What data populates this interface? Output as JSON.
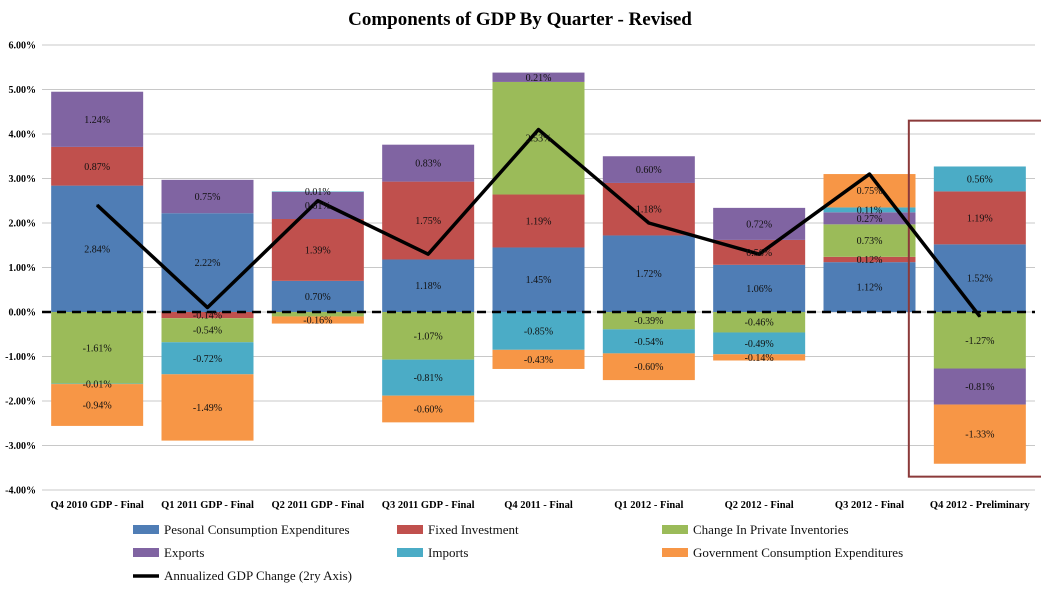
{
  "chart_data": {
    "type": "bar",
    "stacked": true,
    "title": "Components of GDP By Quarter - Revised",
    "categories": [
      "Q4 2010 GDP - Final",
      "Q1 2011 GDP - Final",
      "Q2 2011 GDP - Final",
      "Q3 2011 GDP - Final",
      "Q4 2011 - Final",
      "Q1 2012 - Final",
      "Q2 2012 - Final",
      "Q3 2012 - Final",
      "Q4 2012 - Preliminary"
    ],
    "ylim": [
      -4,
      6
    ],
    "yticks": [
      -4,
      -3,
      -2,
      -1,
      0,
      1,
      2,
      3,
      4,
      5,
      6
    ],
    "ytick_labels": [
      "-4.00%",
      "-3.00%",
      "-2.00%",
      "-1.00%",
      "0.00%",
      "1.00%",
      "2.00%",
      "3.00%",
      "4.00%",
      "5.00%",
      "6.00%"
    ],
    "grid": true,
    "legend_position": "bottom",
    "highlighted_category": "Q4 2012 - Preliminary",
    "highlight_color": "#8b3a3a",
    "series": [
      {
        "name": "Pesonal Consumption Expenditures",
        "color": "#4f7db5",
        "values": [
          2.84,
          2.22,
          0.7,
          1.18,
          1.45,
          1.72,
          1.06,
          1.12,
          1.52
        ],
        "labels": [
          "2.84%",
          "2.22%",
          "0.70%",
          "1.18%",
          "1.45%",
          "1.72%",
          "1.06%",
          "1.12%",
          "1.52%"
        ]
      },
      {
        "name": "Fixed Investment",
        "color": "#c0504d",
        "values": [
          0.87,
          -0.14,
          1.39,
          1.75,
          1.19,
          1.18,
          0.56,
          0.12,
          1.19
        ],
        "labels": [
          "0.87%",
          "-0.14%",
          "1.39%",
          "1.75%",
          "1.19%",
          "1.18%",
          "0.56%",
          "0.12%",
          "1.19%"
        ]
      },
      {
        "name": "Change In Private Inventories",
        "color": "#9bbb59",
        "values": [
          -1.61,
          -0.54,
          -0.1,
          -1.07,
          2.53,
          -0.39,
          -0.46,
          0.73,
          -1.27
        ],
        "labels": [
          "-1.61%",
          "-0.54%",
          "",
          "-1.07%",
          "2.53%",
          "-0.39%",
          "-0.46%",
          "0.73%",
          "-1.27%"
        ]
      },
      {
        "name": "Exports",
        "color": "#8064a2",
        "values": [
          1.24,
          0.75,
          0.61,
          0.83,
          0.21,
          0.6,
          0.72,
          0.27,
          -0.81
        ],
        "labels": [
          "1.24%",
          "0.75%",
          "0.61%",
          "0.83%",
          "0.21%",
          "0.60%",
          "0.72%",
          "0.27%",
          "-0.81%"
        ]
      },
      {
        "name": "Imports",
        "color": "#4bacc6",
        "values": [
          -0.01,
          -0.72,
          0.01,
          -0.81,
          -0.85,
          -0.54,
          -0.49,
          0.11,
          0.56
        ],
        "labels": [
          "-0.01%",
          "-0.72%",
          "0.01%",
          "-0.81%",
          "-0.85%",
          "-0.54%",
          "-0.49%",
          "0.11%",
          "0.56%"
        ]
      },
      {
        "name": "Government Consumption Expenditures",
        "color": "#f79646",
        "values": [
          -0.94,
          -1.49,
          -0.16,
          -0.6,
          -0.43,
          -0.6,
          -0.14,
          0.75,
          -1.33
        ],
        "labels": [
          "-0.94%",
          "-1.49%",
          "-0.16%",
          "-0.60%",
          "-0.43%",
          "-0.60%",
          "-0.14%",
          "0.75%",
          "-1.33%"
        ]
      }
    ],
    "line_series": {
      "name": "Annualized GDP Change (2ry Axis)",
      "color": "#000000",
      "values": [
        2.4,
        0.1,
        2.5,
        1.3,
        4.1,
        2.0,
        1.3,
        3.1,
        -0.1
      ]
    },
    "zero_line": {
      "style": "dashed",
      "color": "#000000"
    }
  }
}
